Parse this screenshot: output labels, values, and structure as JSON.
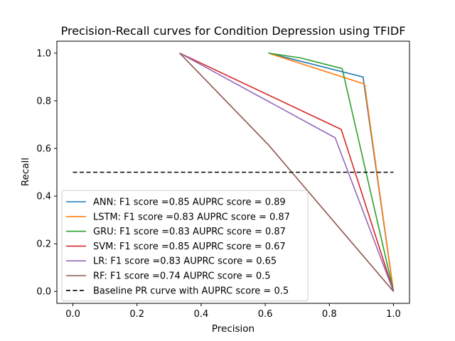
{
  "chart_data": {
    "type": "line",
    "title": "Precision-Recall curves for Condition Depression using TFIDF",
    "xlabel": "Precision",
    "ylabel": "Recall",
    "xlim": [
      -0.05,
      1.05
    ],
    "ylim": [
      -0.05,
      1.05
    ],
    "xticks": [
      0.0,
      0.2,
      0.4,
      0.6,
      0.8,
      1.0
    ],
    "xtick_labels": [
      "0.0",
      "0.2",
      "0.4",
      "0.6",
      "0.8",
      "1.0"
    ],
    "yticks": [
      0.0,
      0.2,
      0.4,
      0.6,
      0.8,
      1.0
    ],
    "ytick_labels": [
      "0.0",
      "0.2",
      "0.4",
      "0.6",
      "0.8",
      "1.0"
    ],
    "legend_position": "lower-left",
    "series": [
      {
        "id": "ann",
        "name": "ANN: F1 score =0.85 AUPRC score = 0.89",
        "color": "#1f77b4",
        "dash": "solid",
        "x": [
          0.61,
          0.905,
          1.0
        ],
        "y": [
          1.0,
          0.9,
          0.0
        ]
      },
      {
        "id": "lstm",
        "name": "LSTM: F1 score =0.83 AUPRC score = 0.87",
        "color": "#ff7f0e",
        "dash": "solid",
        "x": [
          0.61,
          0.91,
          1.0
        ],
        "y": [
          1.0,
          0.87,
          0.0
        ]
      },
      {
        "id": "gru",
        "name": "GRU: F1 score =0.83 AUPRC score = 0.87",
        "color": "#2ca02c",
        "dash": "solid",
        "x": [
          0.61,
          0.71,
          0.84,
          1.0
        ],
        "y": [
          1.0,
          0.98,
          0.935,
          0.0
        ]
      },
      {
        "id": "svm",
        "name": "SVM: F1 score =0.85 AUPRC score = 0.67",
        "color": "#d62728",
        "dash": "solid",
        "x": [
          0.333,
          0.837,
          1.0
        ],
        "y": [
          1.0,
          0.68,
          0.0
        ]
      },
      {
        "id": "lr",
        "name": "LR: F1 score =0.83 AUPRC score = 0.65",
        "color": "#9467bd",
        "dash": "solid",
        "x": [
          0.333,
          0.818,
          1.0
        ],
        "y": [
          1.0,
          0.645,
          0.0
        ]
      },
      {
        "id": "rf",
        "name": "RF: F1 score =0.74 AUPRC score = 0.5",
        "color": "#8c564b",
        "dash": "solid",
        "x": [
          0.333,
          0.61,
          1.0
        ],
        "y": [
          1.0,
          0.615,
          0.0
        ]
      },
      {
        "id": "baseline",
        "name": "Baseline PR curve with AUPRC score = 0.5",
        "color": "#000000",
        "dash": "dashed",
        "x": [
          0.0,
          1.0
        ],
        "y": [
          0.5,
          0.5
        ]
      }
    ]
  }
}
